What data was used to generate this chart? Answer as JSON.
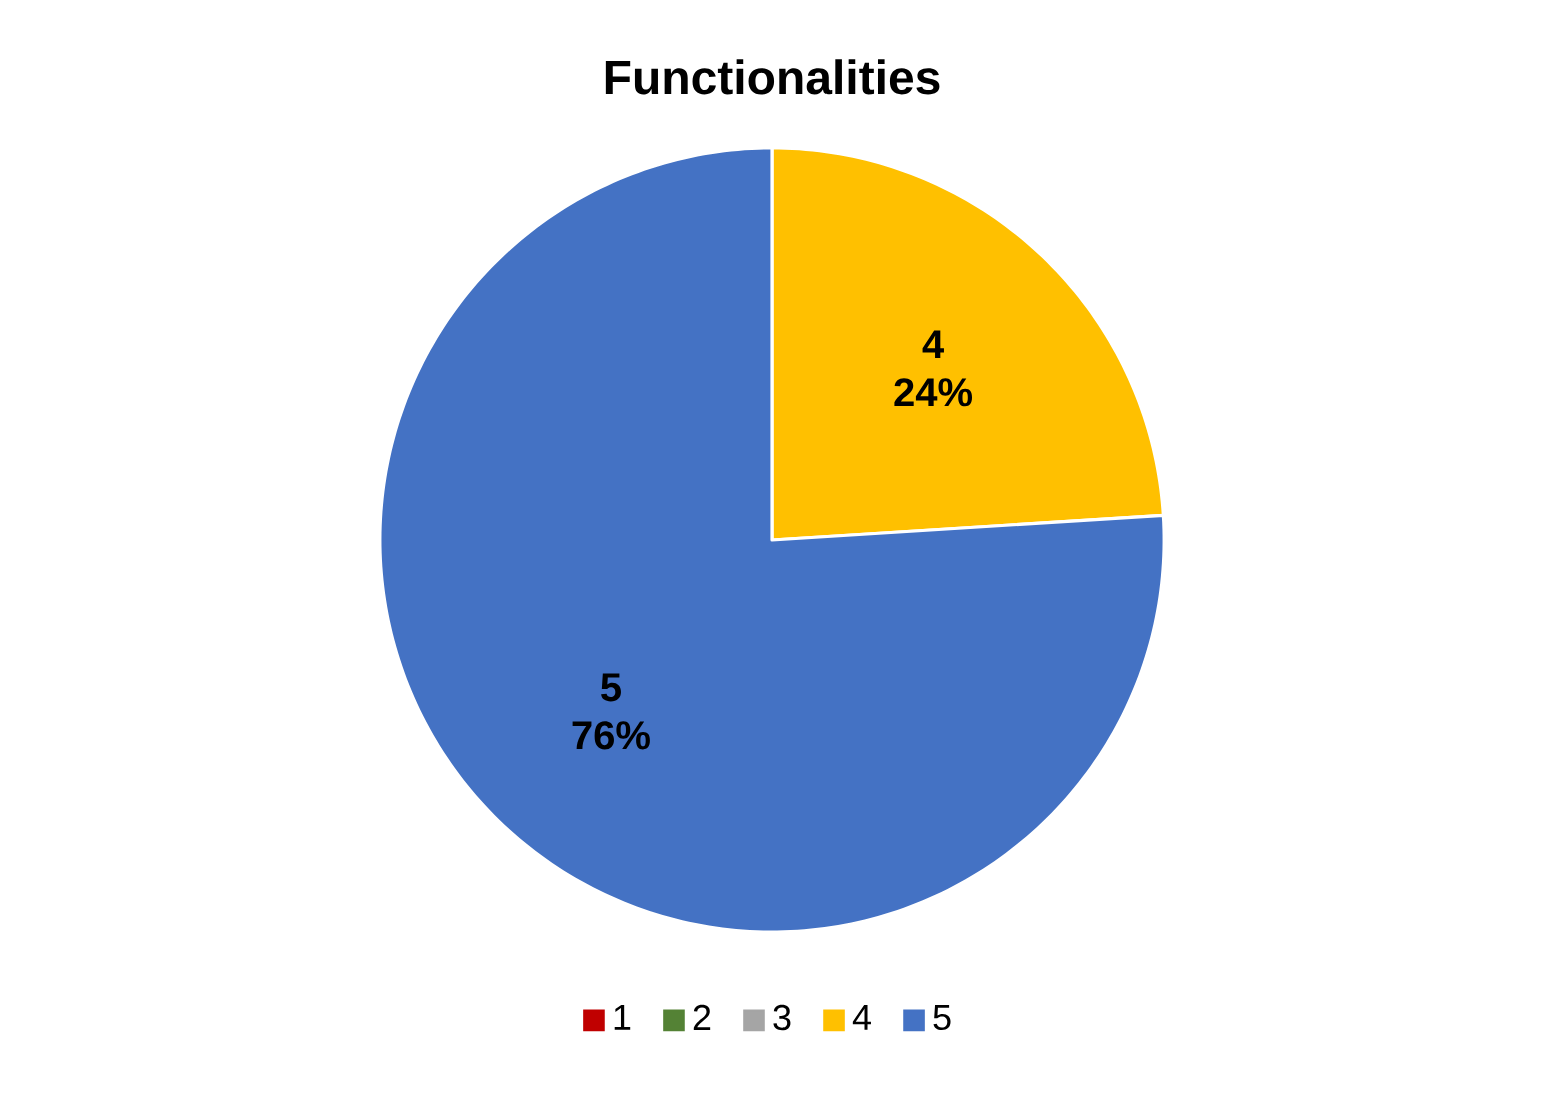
{
  "chart_data": {
    "type": "pie",
    "title": "Functionalities",
    "categories": [
      "1",
      "2",
      "3",
      "4",
      "5"
    ],
    "values": [
      0,
      0,
      0,
      24,
      76
    ],
    "colors": [
      "#c00000",
      "#548235",
      "#a5a5a5",
      "#ffc000",
      "#4472c4"
    ],
    "value_labels": [
      null,
      null,
      null,
      "24%",
      "76%"
    ],
    "legend": "bottom"
  }
}
